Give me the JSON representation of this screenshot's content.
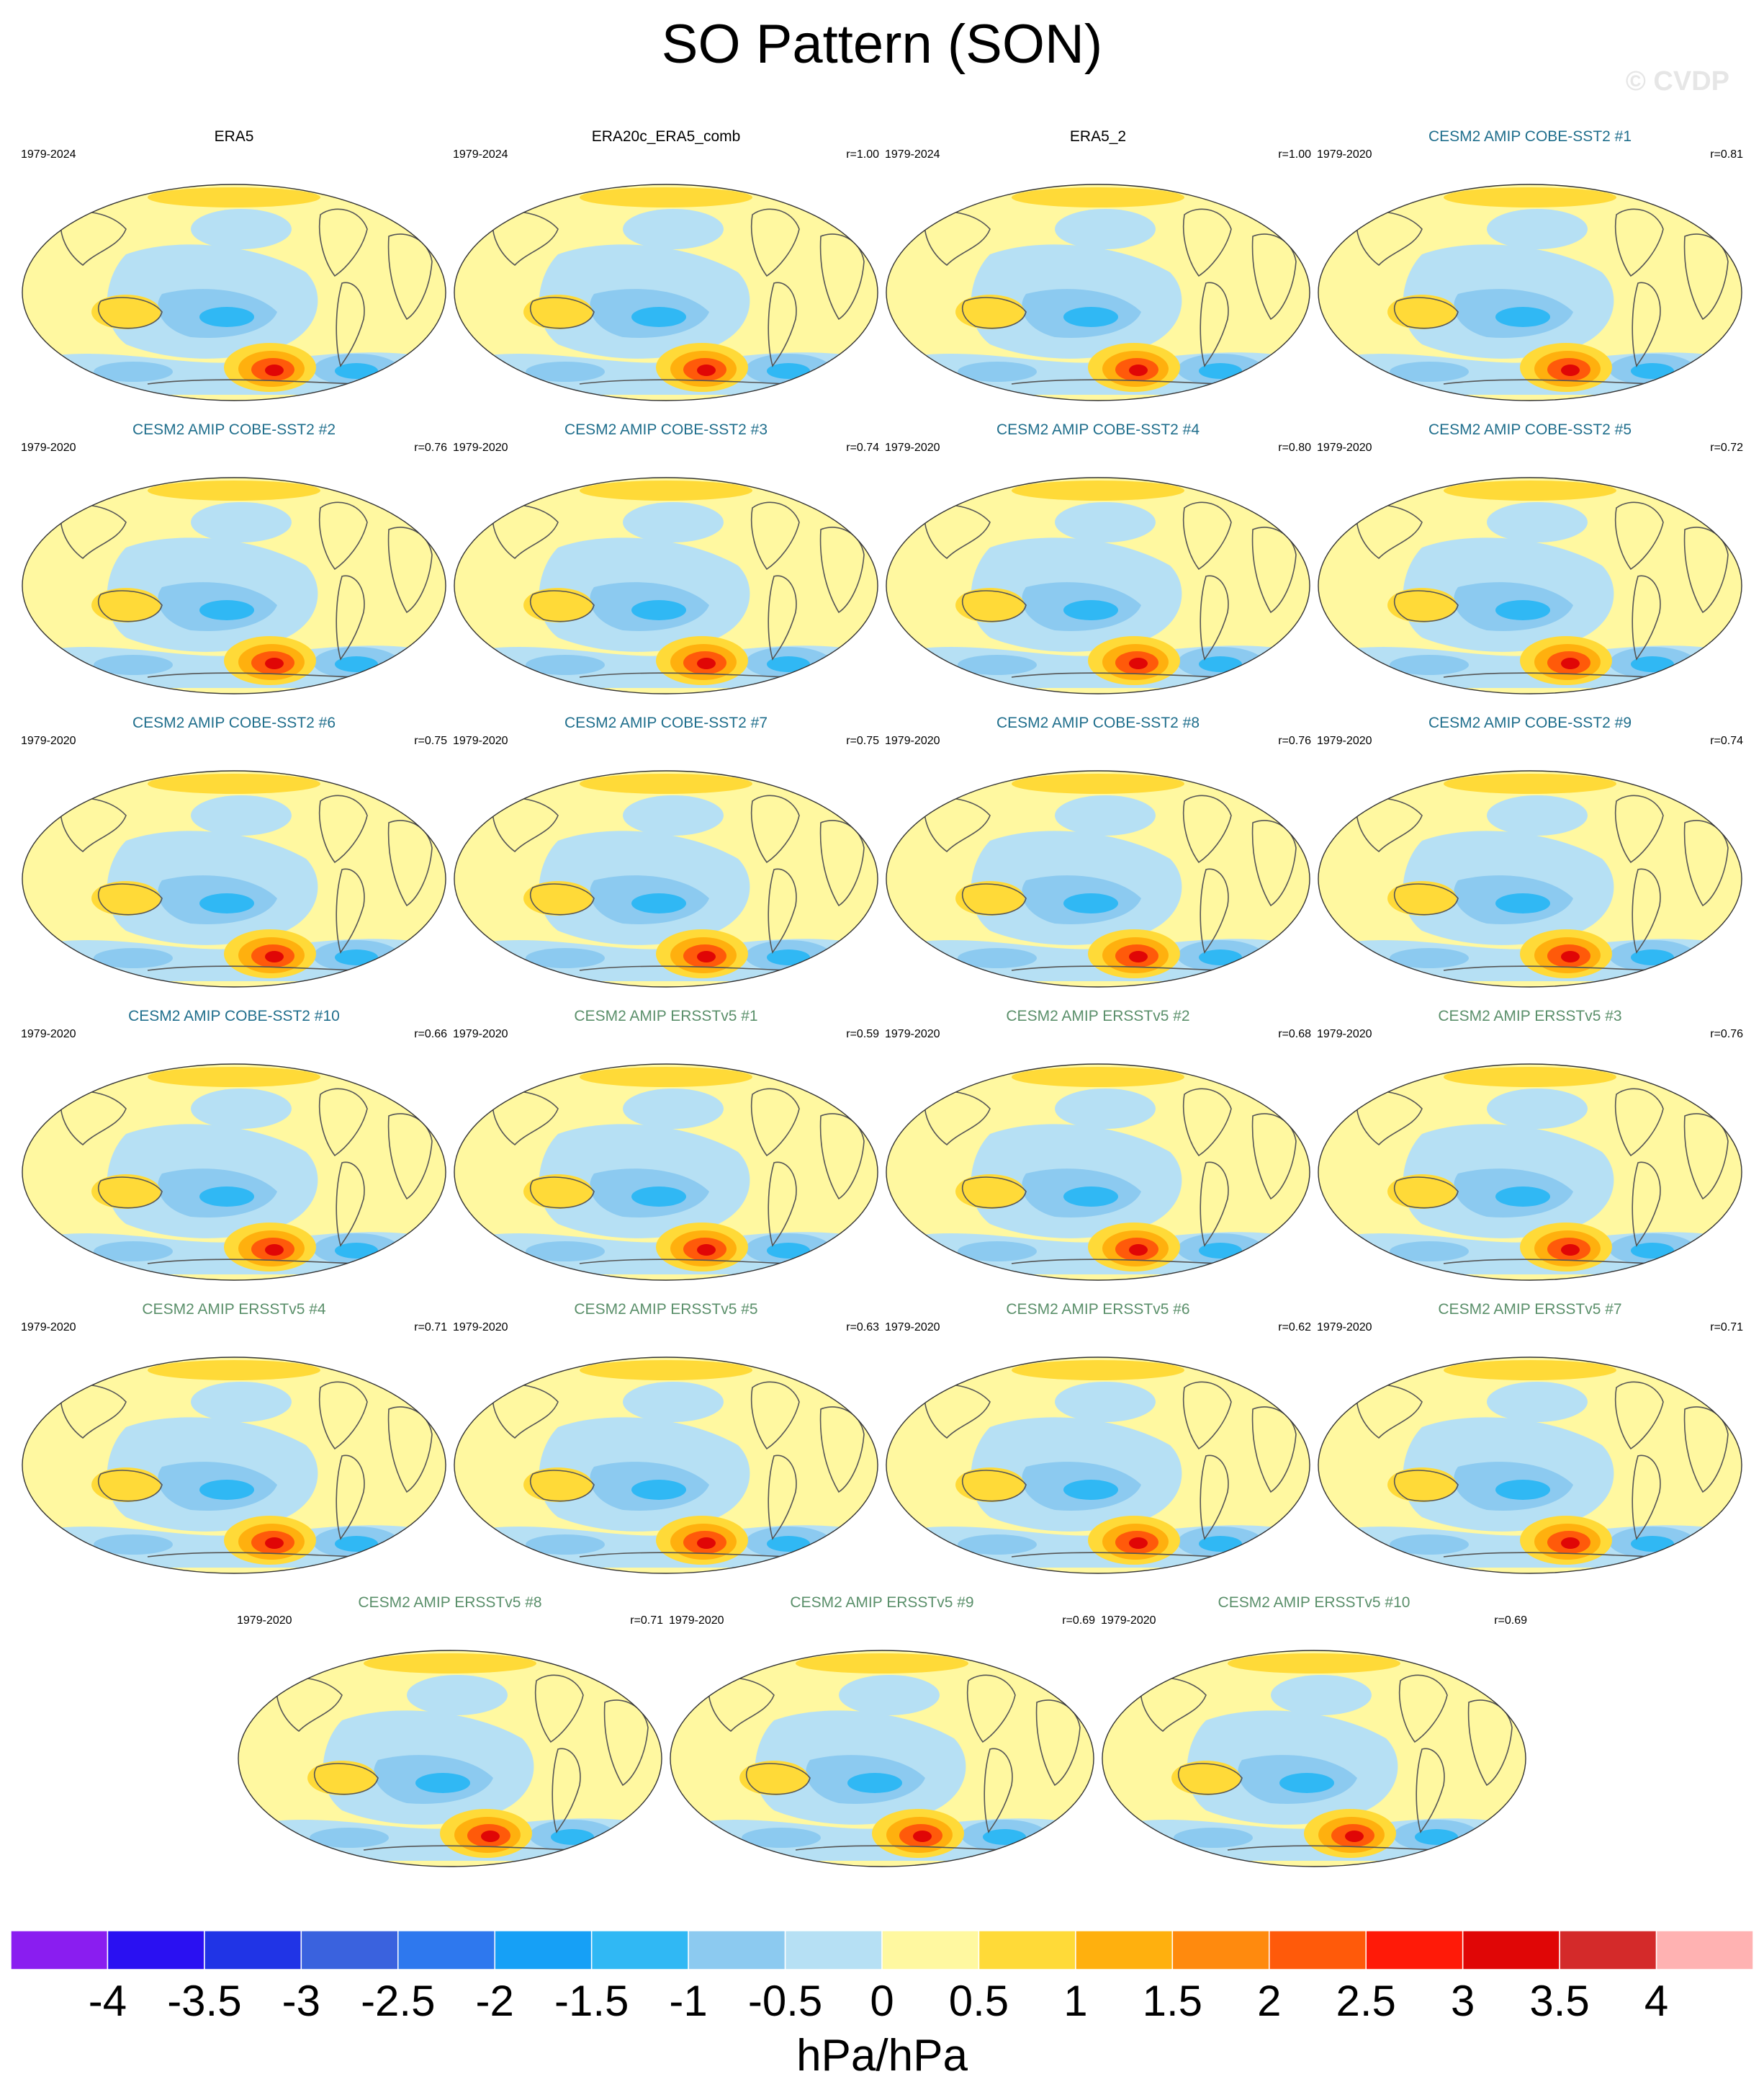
{
  "title": "SO Pattern (SON)",
  "watermark": "© CVDP",
  "title_colors": {
    "obs": "#000000",
    "cobe": "#1f6e8c",
    "ersst": "#5a8f6a"
  },
  "panels": [
    {
      "title": "ERA5",
      "group": "obs",
      "period": "1979-2024",
      "r": ""
    },
    {
      "title": "ERA20c_ERA5_comb",
      "group": "obs",
      "period": "1979-2024",
      "r": "r=1.00"
    },
    {
      "title": "ERA5_2",
      "group": "obs",
      "period": "1979-2024",
      "r": "r=1.00"
    },
    {
      "title": "CESM2 AMIP COBE-SST2 #1",
      "group": "cobe",
      "period": "1979-2020",
      "r": "r=0.81"
    },
    {
      "title": "CESM2 AMIP COBE-SST2 #2",
      "group": "cobe",
      "period": "1979-2020",
      "r": "r=0.76"
    },
    {
      "title": "CESM2 AMIP COBE-SST2 #3",
      "group": "cobe",
      "period": "1979-2020",
      "r": "r=0.74"
    },
    {
      "title": "CESM2 AMIP COBE-SST2 #4",
      "group": "cobe",
      "period": "1979-2020",
      "r": "r=0.80"
    },
    {
      "title": "CESM2 AMIP COBE-SST2 #5",
      "group": "cobe",
      "period": "1979-2020",
      "r": "r=0.72"
    },
    {
      "title": "CESM2 AMIP COBE-SST2 #6",
      "group": "cobe",
      "period": "1979-2020",
      "r": "r=0.75"
    },
    {
      "title": "CESM2 AMIP COBE-SST2 #7",
      "group": "cobe",
      "period": "1979-2020",
      "r": "r=0.75"
    },
    {
      "title": "CESM2 AMIP COBE-SST2 #8",
      "group": "cobe",
      "period": "1979-2020",
      "r": "r=0.76"
    },
    {
      "title": "CESM2 AMIP COBE-SST2 #9",
      "group": "cobe",
      "period": "1979-2020",
      "r": "r=0.74"
    },
    {
      "title": "CESM2 AMIP COBE-SST2 #10",
      "group": "cobe",
      "period": "1979-2020",
      "r": "r=0.66"
    },
    {
      "title": "CESM2 AMIP ERSSTv5 #1",
      "group": "ersst",
      "period": "1979-2020",
      "r": "r=0.59"
    },
    {
      "title": "CESM2 AMIP ERSSTv5 #2",
      "group": "ersst",
      "period": "1979-2020",
      "r": "r=0.68"
    },
    {
      "title": "CESM2 AMIP ERSSTv5 #3",
      "group": "ersst",
      "period": "1979-2020",
      "r": "r=0.76"
    },
    {
      "title": "CESM2 AMIP ERSSTv5 #4",
      "group": "ersst",
      "period": "1979-2020",
      "r": "r=0.71"
    },
    {
      "title": "CESM2 AMIP ERSSTv5 #5",
      "group": "ersst",
      "period": "1979-2020",
      "r": "r=0.63"
    },
    {
      "title": "CESM2 AMIP ERSSTv5 #6",
      "group": "ersst",
      "period": "1979-2020",
      "r": "r=0.62"
    },
    {
      "title": "CESM2 AMIP ERSSTv5 #7",
      "group": "ersst",
      "period": "1979-2020",
      "r": "r=0.71"
    },
    {
      "title": "CESM2 AMIP ERSSTv5 #8",
      "group": "ersst",
      "period": "1979-2020",
      "r": "r=0.71"
    },
    {
      "title": "CESM2 AMIP ERSSTv5 #9",
      "group": "ersst",
      "period": "1979-2020",
      "r": "r=0.69"
    },
    {
      "title": "CESM2 AMIP ERSSTv5 #10",
      "group": "ersst",
      "period": "1979-2020",
      "r": "r=0.69"
    }
  ],
  "colorbar": {
    "tick_labels": [
      "-4",
      "-3.5",
      "-3",
      "-2.5",
      "-2",
      "-1.5",
      "-1",
      "-0.5",
      "0",
      "0.5",
      "1",
      "1.5",
      "2",
      "2.5",
      "3",
      "3.5",
      "4"
    ],
    "colors": [
      "#8a1df0",
      "#2a10f2",
      "#2034e6",
      "#3a62de",
      "#2e78ee",
      "#16a0f6",
      "#30b8f4",
      "#8ccaf0",
      "#b6e0f4",
      "#fff8a0",
      "#ffda38",
      "#ffb00e",
      "#ff8a0e",
      "#ff5a0a",
      "#ff1a08",
      "#e00606",
      "#d42a2a",
      "#ffb2b2"
    ],
    "unit": "hPa/hPa"
  },
  "map_colors": {
    "neg_weak": "#b6e0f4",
    "neg_mid": "#8ccaf0",
    "neg_strong": "#30b8f4",
    "neg_deep": "#2e78ee",
    "pos_weak": "#fff8a0",
    "pos_mid": "#ffda38",
    "pos_strong": "#ffb00e",
    "pos_deep": "#ff5a0a",
    "pos_core": "#e00606",
    "coast": "#555555"
  }
}
